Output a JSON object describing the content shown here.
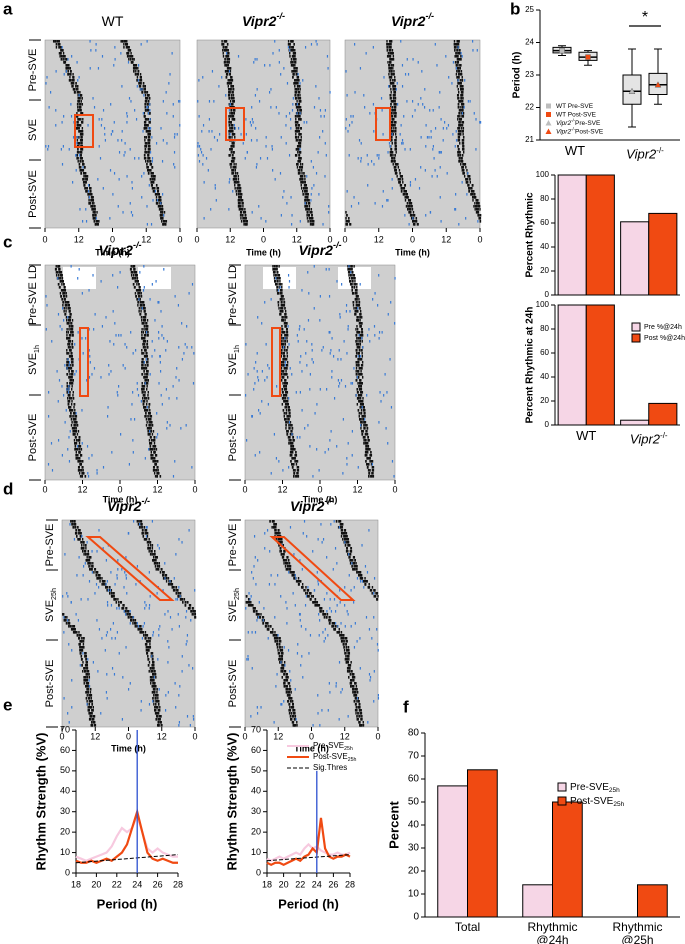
{
  "panel_letters": [
    "a",
    "b",
    "c",
    "d",
    "e",
    "f"
  ],
  "actograms": {
    "a": {
      "titles": [
        {
          "text": "WT"
        },
        {
          "text": "Vipr2",
          "sup": "-/-"
        },
        {
          "text": "Vipr2",
          "sup": "-/-"
        }
      ],
      "row_labels": [
        {
          "text": "Pre-SVE"
        },
        {
          "text": "SVE"
        },
        {
          "text": "Post-SVE"
        }
      ],
      "time_ticks": [
        "0",
        "12",
        "0",
        "12",
        "0"
      ],
      "time_label": "Time (h)"
    },
    "c": {
      "titles": [
        {
          "text": "Vipr2",
          "sup": "-/-"
        },
        {
          "text": "Vipr2",
          "sup": "-/-"
        }
      ],
      "row_labels": [
        {
          "text": "Pre-SVE LD"
        },
        {
          "text": "SVE",
          "sub": "1h"
        },
        {
          "text": "Post-SVE"
        }
      ],
      "time_ticks": [
        "0",
        "12",
        "0",
        "12",
        "0"
      ],
      "time_label": "Time (h)"
    },
    "d": {
      "titles": [
        {
          "text": "Vipr2",
          "sup": "-/-"
        },
        {
          "text": "Vipr2",
          "sup": "-/-"
        }
      ],
      "row_labels": [
        {
          "text": "Pre-SVE"
        },
        {
          "text": "SVE",
          "sub": "25h"
        },
        {
          "text": "Post-SVE"
        }
      ],
      "time_ticks": [
        "0",
        "12",
        "0",
        "12",
        "0"
      ],
      "time_label": "Time (h)"
    }
  },
  "chart_data": [
    {
      "type": "box",
      "y_label": "Period (h)",
      "ylim": [
        21,
        25
      ],
      "yticks": [
        21,
        22,
        23,
        24,
        25
      ],
      "categories": [
        "WT",
        "Vipr2"
      ],
      "category_sups": [
        null,
        "-/-"
      ],
      "series": [
        {
          "name": "WT Pre-SVE",
          "color": "#bdbdbd",
          "marker": "square",
          "boxes": [
            {
              "min": 23.6,
              "q1": 23.68,
              "median": 23.75,
              "q3": 23.85,
              "max": 23.9
            },
            null
          ]
        },
        {
          "name": "WT Post-SVE",
          "color": "#f04a12",
          "marker": "square",
          "boxes": [
            {
              "min": 23.3,
              "q1": 23.45,
              "median": 23.55,
              "q3": 23.7,
              "max": 23.75
            },
            null
          ]
        },
        {
          "name_prefix": "Vipr2",
          "name_sup": "-/-",
          "name": "Pre-SVE",
          "color": "#bdbdbd",
          "marker": "triangle",
          "boxes": [
            null,
            {
              "min": 21.4,
              "q1": 22.1,
              "median": 22.5,
              "q3": 23.0,
              "max": 23.8
            }
          ]
        },
        {
          "name_prefix": "Vipr2",
          "name_sup": "-/-",
          "name": "Post-SVE",
          "color": "#f04a12",
          "marker": "triangle",
          "boxes": [
            null,
            {
              "min": 22.1,
              "q1": 22.4,
              "median": 22.7,
              "q3": 23.05,
              "max": 23.8
            }
          ]
        }
      ],
      "annotation": "*"
    },
    {
      "type": "bar",
      "y_label": "Percent Rhythmic",
      "categories": [
        null,
        null
      ],
      "ylim": [
        0,
        100
      ],
      "yticks": [
        0,
        20,
        40,
        60,
        80,
        100
      ],
      "series": [
        {
          "color": "#f6d6e6",
          "values": [
            100,
            61
          ]
        },
        {
          "color": "#f04a12",
          "values": [
            100,
            68
          ]
        }
      ]
    },
    {
      "type": "bar",
      "y_label": "Percent Rhythmic at 24h",
      "categories": [
        "WT",
        "Vipr2"
      ],
      "category_sups": [
        null,
        "-/-"
      ],
      "ylim": [
        0,
        100
      ],
      "yticks": [
        0,
        20,
        40,
        60,
        80,
        100
      ],
      "series": [
        {
          "name": "Pre %@24h",
          "color": "#f6d6e6",
          "values": [
            100,
            4
          ]
        },
        {
          "name": "Post %@24h",
          "color": "#f04a12",
          "values": [
            100,
            18
          ]
        }
      ]
    },
    {
      "type": "line",
      "y_label": "Rhythm Strength (%V)",
      "x_label": "Period (h)",
      "xlim": [
        18,
        28
      ],
      "xticks": [
        18,
        20,
        22,
        24,
        26,
        28
      ],
      "ylim": [
        0,
        70
      ],
      "yticks": [
        0,
        10,
        20,
        30,
        40,
        50,
        60,
        70
      ],
      "x": [
        18,
        18.5,
        19,
        19.5,
        20,
        20.5,
        21,
        21.5,
        22,
        22.5,
        23,
        23.5,
        24,
        24.5,
        25,
        25.5,
        26,
        26.5,
        27,
        27.5,
        28
      ],
      "series": [
        {
          "color": "#f7c9df",
          "values": [
            8,
            7,
            6,
            7,
            8,
            9,
            10,
            13,
            18,
            22,
            20,
            22,
            28,
            20,
            12,
            10,
            12,
            10,
            9,
            8,
            8
          ]
        },
        {
          "color": "#f04a12",
          "values": [
            6,
            5,
            5,
            6,
            5,
            6,
            7,
            6,
            8,
            10,
            14,
            22,
            30,
            20,
            10,
            7,
            6,
            7,
            6,
            5,
            5
          ]
        }
      ],
      "threshold": {
        "x": [
          18,
          28
        ],
        "values": [
          5,
          9
        ]
      },
      "vline": {
        "x": 24,
        "y_end": 70,
        "color": "#2b4fd0"
      }
    },
    {
      "type": "line",
      "y_label": "Rhythm Strength (%V)",
      "x_label": "Period (h)",
      "xlim": [
        18,
        28
      ],
      "xticks": [
        18,
        20,
        22,
        24,
        26,
        28
      ],
      "ylim": [
        0,
        70
      ],
      "yticks": [
        0,
        10,
        20,
        30,
        40,
        50,
        60,
        70
      ],
      "x": [
        18,
        18.5,
        19,
        19.5,
        20,
        20.5,
        21,
        21.5,
        22,
        22.5,
        23,
        23.5,
        24,
        24.5,
        25,
        25.5,
        26,
        26.5,
        27,
        27.5,
        28
      ],
      "series": [
        {
          "name": "Pre-SVE",
          "name_sub": "25h",
          "color": "#f7c9df",
          "values": [
            7,
            6,
            7,
            8,
            7,
            8,
            9,
            10,
            9,
            12,
            14,
            12,
            13,
            11,
            10,
            9,
            9,
            10,
            9,
            9,
            10
          ]
        },
        {
          "name": "Post-SVE",
          "name_sub": "25h",
          "color": "#f04a12",
          "values": [
            5,
            4,
            5,
            5,
            4,
            5,
            6,
            7,
            6,
            8,
            9,
            12,
            10,
            27,
            12,
            8,
            7,
            8,
            8,
            9,
            8
          ]
        }
      ],
      "threshold": {
        "name": "Sig.Thres",
        "x": [
          18,
          28
        ],
        "values": [
          6,
          9
        ]
      },
      "vline": {
        "x": 24,
        "y_end": 50,
        "color": "#2b4fd0"
      }
    },
    {
      "type": "bar",
      "y_label": "Percent",
      "categories": [
        "Total",
        "Rhythmic @24h",
        "Rhythmic @25h"
      ],
      "ylim": [
        0,
        80
      ],
      "yticks": [
        0,
        10,
        20,
        30,
        40,
        50,
        60,
        70,
        80
      ],
      "series": [
        {
          "name": "Pre-SVE",
          "name_sub": "25h",
          "color": "#f6d6e6",
          "values": [
            57,
            14,
            0
          ]
        },
        {
          "name": "Post-SVE",
          "name_sub": "25h",
          "color": "#f04a12",
          "values": [
            64,
            50,
            14
          ]
        }
      ]
    }
  ]
}
